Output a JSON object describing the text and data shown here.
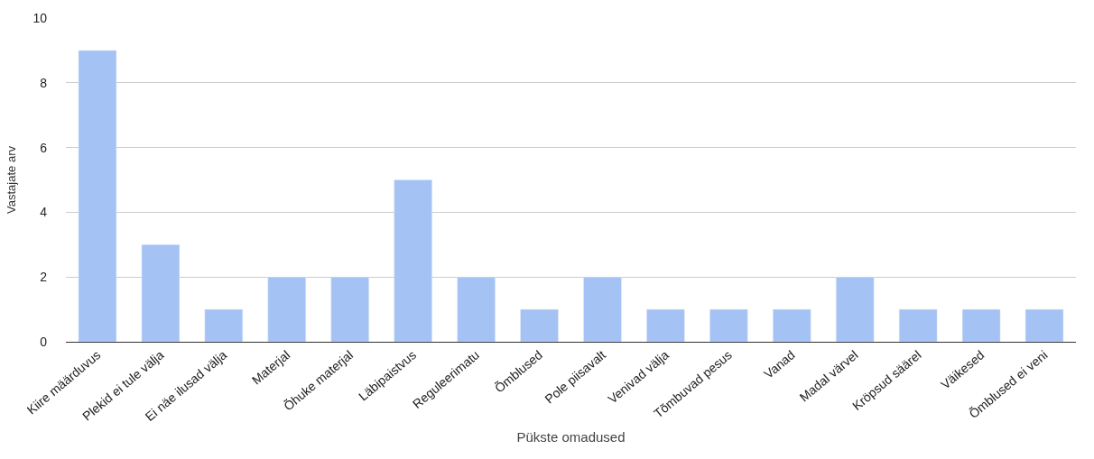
{
  "chart_data": {
    "type": "bar",
    "xlabel": "Pükste omadused",
    "ylabel": "Vastajate arv",
    "categories": [
      "Kiire määrduvus",
      "Plekid ei tule välja",
      "Ei näe ilusad välja",
      "Materjal",
      "Õhuke materjal",
      "Läbipaistvus",
      "Reguleerimatu",
      "Õmblused",
      "Pole piisavalt",
      "Venivad välja",
      "Tõmbuvad pesus",
      "Vanad",
      "Madal värvel",
      "Kröpsud säärel",
      "Väikesed",
      "Õmblused ei veni"
    ],
    "values": [
      9,
      3,
      1,
      2,
      2,
      5,
      2,
      1,
      2,
      1,
      1,
      1,
      2,
      1,
      1,
      1
    ],
    "color": "#a4c2f4",
    "ylim": [
      0,
      10
    ],
    "yticks": [
      0,
      2,
      4,
      6,
      8,
      10
    ],
    "grid": "y"
  }
}
